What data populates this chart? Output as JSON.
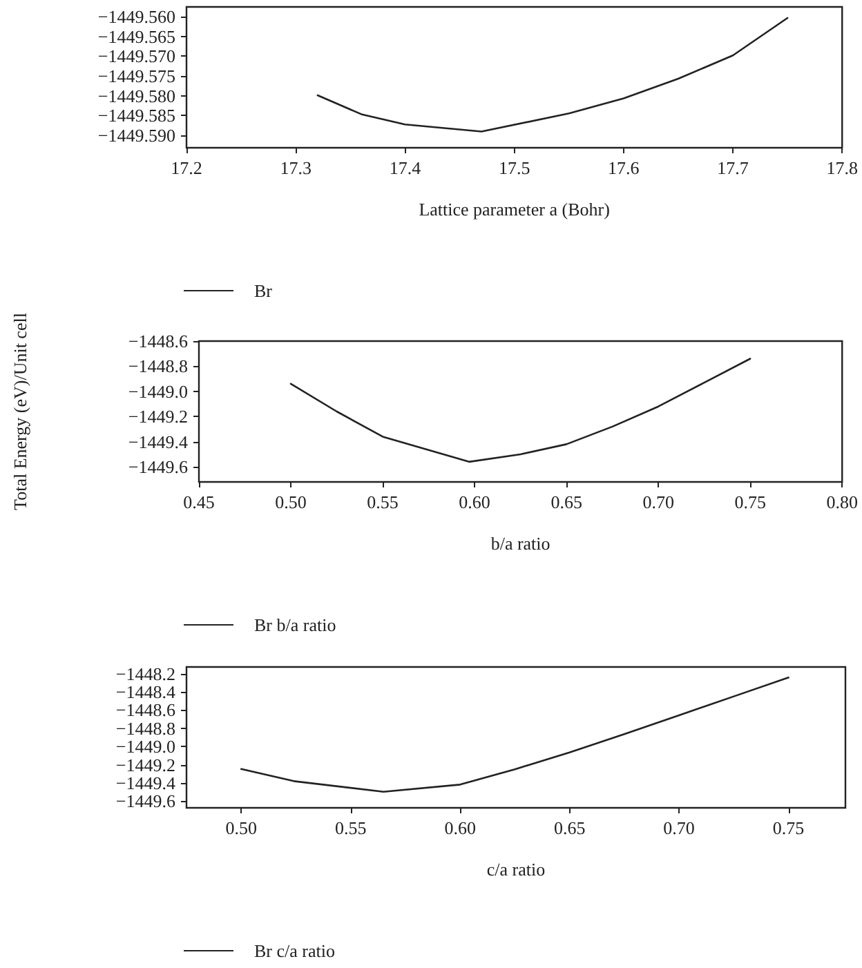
{
  "chart_data": [
    {
      "type": "line",
      "xlabel": "Lattice parameter a (Bohr)",
      "legend": "bottom left",
      "grid": false,
      "marker": "none",
      "line_style": "solid",
      "xlim": [
        17.2,
        17.8
      ],
      "xticks": [
        17.2,
        17.3,
        17.4,
        17.5,
        17.6,
        17.7,
        17.8
      ],
      "ylim": [
        -1449.5932,
        -1449.5575
      ],
      "yticks": [
        {
          "value": -1449.56,
          "label": "−1449.560"
        },
        {
          "value": -1449.565,
          "label": "−1449.565"
        },
        {
          "value": -1449.57,
          "label": "−1449.570"
        },
        {
          "value": -1449.575,
          "label": "−1449.575"
        },
        {
          "value": -1449.58,
          "label": "−1449.580"
        },
        {
          "value": -1449.585,
          "label": "−1449.585"
        },
        {
          "value": -1449.59,
          "label": "−1449.590"
        }
      ],
      "x": [
        17.32,
        17.36,
        17.4,
        17.47,
        17.55,
        17.6,
        17.65,
        17.7,
        17.75
      ],
      "series": [
        {
          "name": "Br",
          "color": "#222222",
          "values": [
            -1449.5799,
            -1449.5847,
            -1449.5873,
            -1449.5891,
            -1449.5845,
            -1449.5807,
            -1449.5757,
            -1449.5698,
            -1449.5603
          ]
        }
      ]
    },
    {
      "type": "line",
      "xlabel": "b/a ratio",
      "ylabel": "Total Energy (eV)/Unit cell",
      "legend": "bottom left",
      "grid": false,
      "marker": "none",
      "line_style": "solid",
      "xlim": [
        0.45,
        0.8
      ],
      "xticks": [
        {
          "value": 0.45,
          "label": "0.45"
        },
        {
          "value": 0.5,
          "label": "0.50"
        },
        {
          "value": 0.55,
          "label": "0.55"
        },
        {
          "value": 0.6,
          "label": "0.60"
        },
        {
          "value": 0.65,
          "label": "0.65"
        },
        {
          "value": 0.7,
          "label": "0.70"
        },
        {
          "value": 0.75,
          "label": "0.75"
        },
        {
          "value": 0.8,
          "label": "0.80"
        }
      ],
      "ylim": [
        -1449.72,
        -1448.6
      ],
      "yticks": [
        {
          "value": -1449.6,
          "label": "−1449.6"
        },
        {
          "value": -1449.4,
          "label": "−1449.4"
        },
        {
          "value": -1449.2,
          "label": "−1449.2"
        },
        {
          "value": -1449.0,
          "label": "−1449.0"
        },
        {
          "value": -1448.8,
          "label": "−1448.8"
        },
        {
          "value": -1448.6,
          "label": "−1448.6"
        }
      ],
      "x": [
        0.5,
        0.525,
        0.55,
        0.597,
        0.625,
        0.65,
        0.675,
        0.7,
        0.725,
        0.75
      ],
      "series": [
        {
          "name": "Br b/a ratio",
          "color": "#222222",
          "values": [
            -1448.94,
            -1449.16,
            -1449.36,
            -1449.56,
            -1449.5,
            -1449.42,
            -1449.28,
            -1449.12,
            -1448.93,
            -1448.74
          ]
        }
      ]
    },
    {
      "type": "line",
      "xlabel": "c/a ratio",
      "legend": "bottom left",
      "grid": false,
      "marker": "none",
      "line_style": "solid",
      "xlim": [
        0.475,
        0.776
      ],
      "xticks": [
        {
          "value": 0.5,
          "label": "0.50"
        },
        {
          "value": 0.55,
          "label": "0.55"
        },
        {
          "value": 0.6,
          "label": "0.60"
        },
        {
          "value": 0.65,
          "label": "0.65"
        },
        {
          "value": 0.7,
          "label": "0.70"
        },
        {
          "value": 0.75,
          "label": "0.75"
        }
      ],
      "ylim": [
        -1449.673,
        -1448.127
      ],
      "yticks": [
        {
          "value": -1449.6,
          "label": "−1449.6"
        },
        {
          "value": -1449.4,
          "label": "−1449.4"
        },
        {
          "value": -1449.2,
          "label": "−1449.2"
        },
        {
          "value": -1449.0,
          "label": "−1449.0"
        },
        {
          "value": -1448.8,
          "label": "−1448.8"
        },
        {
          "value": -1448.6,
          "label": "−1448.6"
        },
        {
          "value": -1448.4,
          "label": "−1448.4"
        },
        {
          "value": -1448.2,
          "label": "−1448.2"
        }
      ],
      "x": [
        0.5,
        0.524,
        0.565,
        0.6,
        0.625,
        0.65,
        0.675,
        0.7,
        0.725,
        0.75
      ],
      "series": [
        {
          "name": "Br c/a ratio",
          "color": "#222222",
          "values": [
            -1449.247,
            -1449.38,
            -1449.497,
            -1449.418,
            -1449.25,
            -1449.065,
            -1448.864,
            -1448.657,
            -1448.45,
            -1448.243
          ]
        }
      ]
    }
  ]
}
